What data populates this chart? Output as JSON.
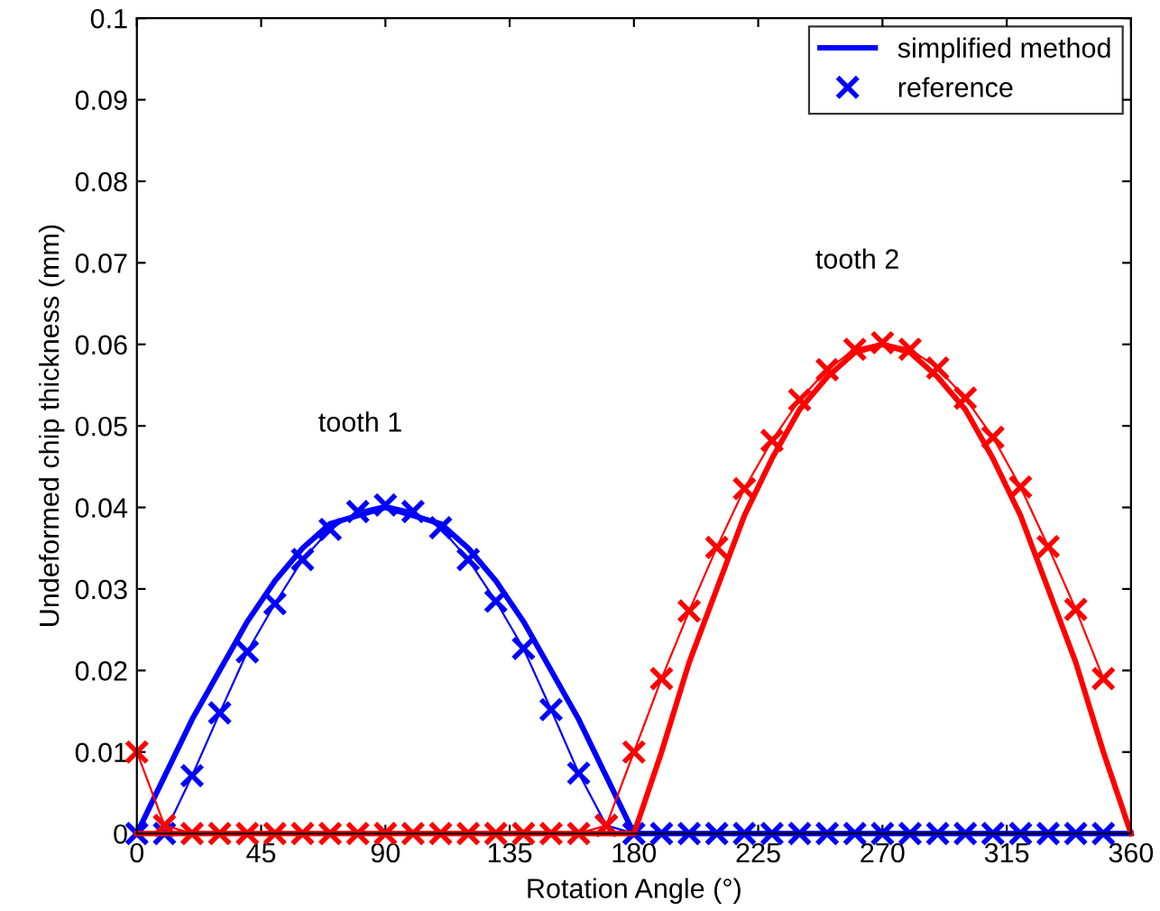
{
  "chart_data": {
    "type": "line",
    "xlabel": "Rotation Angle (°)",
    "ylabel": "Undeformed chip thickness (mm)",
    "xlim": [
      0,
      360
    ],
    "ylim": [
      0,
      0.1
    ],
    "xticks": [
      0,
      45,
      90,
      135,
      180,
      225,
      270,
      315,
      360
    ],
    "yticks": [
      0,
      0.01,
      0.02,
      0.03,
      0.04,
      0.05,
      0.06,
      0.07,
      0.08,
      0.09,
      0.1
    ],
    "grid": false,
    "legend": "top right",
    "annotations": [
      "tooth 1",
      "tooth 2"
    ],
    "series": [
      {
        "name": "simplified method",
        "color": "#0000ff",
        "marker": "none",
        "x": [
          0,
          10,
          20,
          30,
          40,
          50,
          60,
          70,
          80,
          90,
          100,
          110,
          120,
          130,
          140,
          150,
          160,
          170,
          180,
          360
        ],
        "values": [
          0,
          0.007,
          0.014,
          0.02,
          0.026,
          0.031,
          0.035,
          0.038,
          0.039,
          0.04,
          0.039,
          0.038,
          0.035,
          0.031,
          0.026,
          0.02,
          0.014,
          0.007,
          0,
          0
        ]
      },
      {
        "name": "reference",
        "color": "#0000ff",
        "marker": "cross",
        "x": [
          0,
          10,
          20,
          30,
          40,
          50,
          60,
          70,
          80,
          90,
          100,
          110,
          120,
          130,
          140,
          150,
          160,
          170,
          180,
          190,
          200,
          210,
          220,
          230,
          240,
          250,
          260,
          270,
          280,
          290,
          300,
          310,
          320,
          330,
          340,
          350
        ],
        "values": [
          0,
          0,
          0.0071,
          0.0148,
          0.0223,
          0.0282,
          0.0336,
          0.0373,
          0.0395,
          0.0403,
          0.0395,
          0.0375,
          0.0336,
          0.0285,
          0.0227,
          0.0152,
          0.0074,
          0.001,
          0,
          0,
          0,
          0,
          0,
          0,
          0,
          0,
          0,
          0,
          0,
          0,
          0,
          0,
          0,
          0,
          0,
          0
        ]
      },
      {
        "color": "#ff0000",
        "marker": "none",
        "x": [
          0,
          180,
          190,
          200,
          210,
          220,
          230,
          240,
          250,
          260,
          270,
          280,
          290,
          300,
          310,
          320,
          330,
          340,
          350,
          360
        ],
        "values": [
          0,
          0,
          0.01,
          0.021,
          0.03,
          0.039,
          0.046,
          0.052,
          0.056,
          0.059,
          0.06,
          0.059,
          0.056,
          0.052,
          0.046,
          0.039,
          0.03,
          0.021,
          0.01,
          0
        ]
      },
      {
        "color": "#ff0000",
        "marker": "cross",
        "x": [
          0,
          10,
          20,
          30,
          40,
          50,
          60,
          70,
          80,
          90,
          100,
          110,
          120,
          130,
          140,
          150,
          160,
          170,
          180,
          190,
          200,
          210,
          220,
          230,
          240,
          250,
          260,
          270,
          280,
          290,
          300,
          310,
          320,
          330,
          340,
          350
        ],
        "values": [
          0.01,
          0.001,
          0,
          0,
          0,
          0,
          0,
          0,
          0,
          0,
          0,
          0,
          0,
          0,
          0,
          0,
          0,
          0.001,
          0.01,
          0.019,
          0.0273,
          0.0351,
          0.0423,
          0.0482,
          0.0532,
          0.0569,
          0.0594,
          0.0602,
          0.0594,
          0.0571,
          0.0534,
          0.0486,
          0.0425,
          0.0352,
          0.0275,
          0.019
        ]
      }
    ]
  }
}
